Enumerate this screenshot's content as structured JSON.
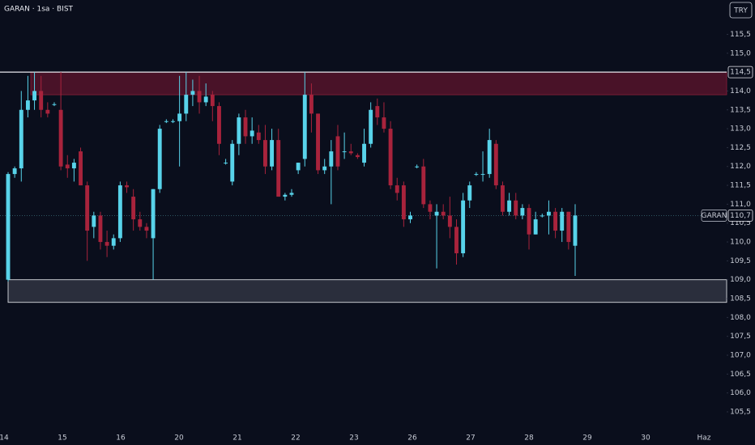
{
  "chart_data": {
    "type": "candlestick",
    "title": "GARAN · 1sa · BIST",
    "currency": "TRY",
    "symbol": "GARAN",
    "last_price": {
      "value": 110.7,
      "label": "110,7"
    },
    "up_color": "#58d3ea",
    "down_color": "#a8233c",
    "resistance": [
      113.9,
      114.5
    ],
    "support": [
      108.4,
      109.0
    ],
    "ylim": [
      105.05,
      116.41
    ],
    "yticks": [
      {
        "value": 105.5,
        "label": "105,5"
      },
      {
        "value": 106,
        "label": "106,0"
      },
      {
        "value": 106.5,
        "label": "106,5"
      },
      {
        "value": 107,
        "label": "107,0"
      },
      {
        "value": 107.5,
        "label": "107,5"
      },
      {
        "value": 108,
        "label": "108,0"
      },
      {
        "value": 108.5,
        "label": "108,5"
      },
      {
        "value": 109,
        "label": "109,0"
      },
      {
        "value": 109.5,
        "label": "109,5"
      },
      {
        "value": 110,
        "label": "110,0"
      },
      {
        "value": 110.5,
        "label": "110,5"
      },
      {
        "value": 111,
        "label": "111,0"
      },
      {
        "value": 111.5,
        "label": "111,5"
      },
      {
        "value": 112,
        "label": "112,0"
      },
      {
        "value": 112.5,
        "label": "112,5"
      },
      {
        "value": 113,
        "label": "113,0"
      },
      {
        "value": 113.5,
        "label": "113,5"
      },
      {
        "value": 114,
        "label": "114,0"
      },
      {
        "value": 114.5,
        "label": "114,5"
      },
      {
        "value": 115,
        "label": "115,0"
      },
      {
        "value": 115.5,
        "label": "115,5"
      }
    ],
    "xticks": [
      "14",
      "15",
      "16",
      "20",
      "21",
      "22",
      "23",
      "26",
      "27",
      "28",
      "29",
      "30",
      "Haz"
    ],
    "candles": [
      [
        109.0,
        111.85,
        108.95,
        111.8
      ],
      [
        111.8,
        112.0,
        111.7,
        111.95
      ],
      [
        111.95,
        114.0,
        111.6,
        113.5
      ],
      [
        113.5,
        114.4,
        113.3,
        113.75
      ],
      [
        113.75,
        114.5,
        113.5,
        114.0
      ],
      [
        114.0,
        114.4,
        113.3,
        113.5
      ],
      [
        113.5,
        113.7,
        113.3,
        113.4
      ],
      [
        113.65,
        113.7,
        113.6,
        113.65
      ],
      [
        113.5,
        114.5,
        111.9,
        112.0
      ],
      [
        112.05,
        112.3,
        111.7,
        111.95
      ],
      [
        111.95,
        112.2,
        111.6,
        112.1
      ],
      [
        112.4,
        112.5,
        111.5,
        111.5
      ],
      [
        111.5,
        111.6,
        109.5,
        110.3
      ],
      [
        110.4,
        110.8,
        110.1,
        110.7
      ],
      [
        110.7,
        110.8,
        109.8,
        110.0
      ],
      [
        110.0,
        110.3,
        109.6,
        109.9
      ],
      [
        109.9,
        110.2,
        109.8,
        110.1
      ],
      [
        110.1,
        111.6,
        110.0,
        111.5
      ],
      [
        111.5,
        111.6,
        111.3,
        111.45
      ],
      [
        111.2,
        111.4,
        110.3,
        110.6
      ],
      [
        110.6,
        110.8,
        110.3,
        110.4
      ],
      [
        110.4,
        110.5,
        110.1,
        110.3
      ],
      [
        110.1,
        111.4,
        109.0,
        111.4
      ],
      [
        111.4,
        113.1,
        111.3,
        113.0
      ],
      [
        113.2,
        113.25,
        113.15,
        113.2
      ],
      [
        113.2,
        113.25,
        113.15,
        113.2
      ],
      [
        113.2,
        114.4,
        112.0,
        113.4
      ],
      [
        113.4,
        114.5,
        113.2,
        113.9
      ],
      [
        113.9,
        114.3,
        113.6,
        114.0
      ],
      [
        114.0,
        114.4,
        113.4,
        113.7
      ],
      [
        113.7,
        114.2,
        113.6,
        113.85
      ],
      [
        113.9,
        114.0,
        113.2,
        113.6
      ],
      [
        113.6,
        113.7,
        112.3,
        112.6
      ],
      [
        112.1,
        112.2,
        112.05,
        112.1
      ],
      [
        111.6,
        112.7,
        111.5,
        112.6
      ],
      [
        112.6,
        113.4,
        112.3,
        113.3
      ],
      [
        113.3,
        113.5,
        112.6,
        112.8
      ],
      [
        112.8,
        113.3,
        112.6,
        112.95
      ],
      [
        112.9,
        113.1,
        112.6,
        112.7
      ],
      [
        112.7,
        113.1,
        111.8,
        112.0
      ],
      [
        112.0,
        113.0,
        111.9,
        112.7
      ],
      [
        112.7,
        113.0,
        111.2,
        111.2
      ],
      [
        111.2,
        111.3,
        111.1,
        111.25
      ],
      [
        111.25,
        111.4,
        111.2,
        111.3
      ],
      [
        111.9,
        112.1,
        111.8,
        112.1
      ],
      [
        112.2,
        114.5,
        112.0,
        113.9
      ],
      [
        113.9,
        114.2,
        112.9,
        113.4
      ],
      [
        113.4,
        113.4,
        111.8,
        111.9
      ],
      [
        111.9,
        112.2,
        111.8,
        112.0
      ],
      [
        112.0,
        112.7,
        111.0,
        112.4
      ],
      [
        112.8,
        113.1,
        111.9,
        112.0
      ],
      [
        112.4,
        112.9,
        112.2,
        112.4
      ],
      [
        112.4,
        112.6,
        112.3,
        112.35
      ],
      [
        112.3,
        112.35,
        112.2,
        112.25
      ],
      [
        112.1,
        113.0,
        112.0,
        112.6
      ],
      [
        112.6,
        113.7,
        112.5,
        113.5
      ],
      [
        113.6,
        113.8,
        113.1,
        113.3
      ],
      [
        113.3,
        113.7,
        112.9,
        113.0
      ],
      [
        113.0,
        113.2,
        111.4,
        111.5
      ],
      [
        111.5,
        111.7,
        111.1,
        111.3
      ],
      [
        111.5,
        111.6,
        110.4,
        110.6
      ],
      [
        110.6,
        110.8,
        110.5,
        110.7
      ],
      [
        112.0,
        112.05,
        111.95,
        112.0
      ],
      [
        112.0,
        112.2,
        110.9,
        111.0
      ],
      [
        111.0,
        111.1,
        110.6,
        110.8
      ],
      [
        110.7,
        111.0,
        109.3,
        110.8
      ],
      [
        110.8,
        111.0,
        110.6,
        110.7
      ],
      [
        110.7,
        111.2,
        110.1,
        110.4
      ],
      [
        110.4,
        110.6,
        109.4,
        109.7
      ],
      [
        109.7,
        111.3,
        109.6,
        111.1
      ],
      [
        111.1,
        111.6,
        110.9,
        111.5
      ],
      [
        111.8,
        111.85,
        111.75,
        111.8
      ],
      [
        111.8,
        112.4,
        111.6,
        111.8
      ],
      [
        111.8,
        113.0,
        111.7,
        112.7
      ],
      [
        112.6,
        112.7,
        111.4,
        111.5
      ],
      [
        111.5,
        111.6,
        110.7,
        110.8
      ],
      [
        110.8,
        111.3,
        110.7,
        111.1
      ],
      [
        111.1,
        111.3,
        110.6,
        110.7
      ],
      [
        110.7,
        111.0,
        110.6,
        110.9
      ],
      [
        110.9,
        111.0,
        109.8,
        110.2
      ],
      [
        110.2,
        110.8,
        110.2,
        110.6
      ],
      [
        110.7,
        110.75,
        110.65,
        110.7
      ],
      [
        110.7,
        111.1,
        110.2,
        110.8
      ],
      [
        110.8,
        110.9,
        110.1,
        110.3
      ],
      [
        110.3,
        110.9,
        110.0,
        110.8
      ],
      [
        110.8,
        110.8,
        109.8,
        110.0
      ],
      [
        109.9,
        111.0,
        109.1,
        110.7
      ]
    ]
  }
}
